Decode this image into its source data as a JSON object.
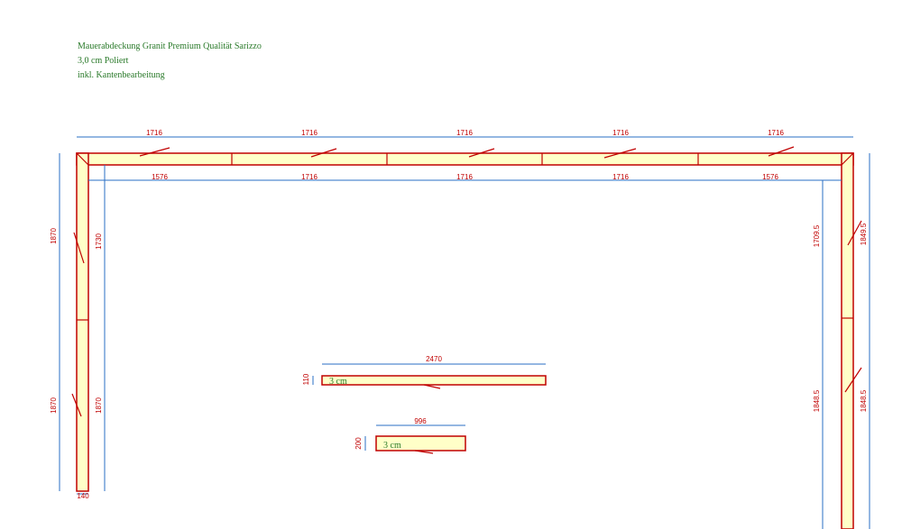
{
  "header": {
    "lines": [
      "Mauerabdeckung Granit Premium Qualität Sarizzo",
      "3,0 cm Poliert",
      "inkl. Kantenbearbeitung"
    ]
  },
  "dimensions": {
    "top_outer": [
      "1716",
      "1716",
      "1716",
      "1716",
      "1716"
    ],
    "top_inner": [
      "1576",
      "1716",
      "1716",
      "1716",
      "1576"
    ],
    "left_outer": [
      "1870",
      "1870"
    ],
    "left_inner": [
      "1730",
      "1870"
    ],
    "left_width": "140",
    "right_inner": [
      "1709.5",
      "1848.5"
    ],
    "right_outer": [
      "1849.5",
      "1848.5"
    ]
  },
  "pieces": [
    {
      "length": "2470",
      "width": "110",
      "label": "3 cm"
    },
    {
      "length": "996",
      "width": "200",
      "label": "3 cm"
    }
  ]
}
